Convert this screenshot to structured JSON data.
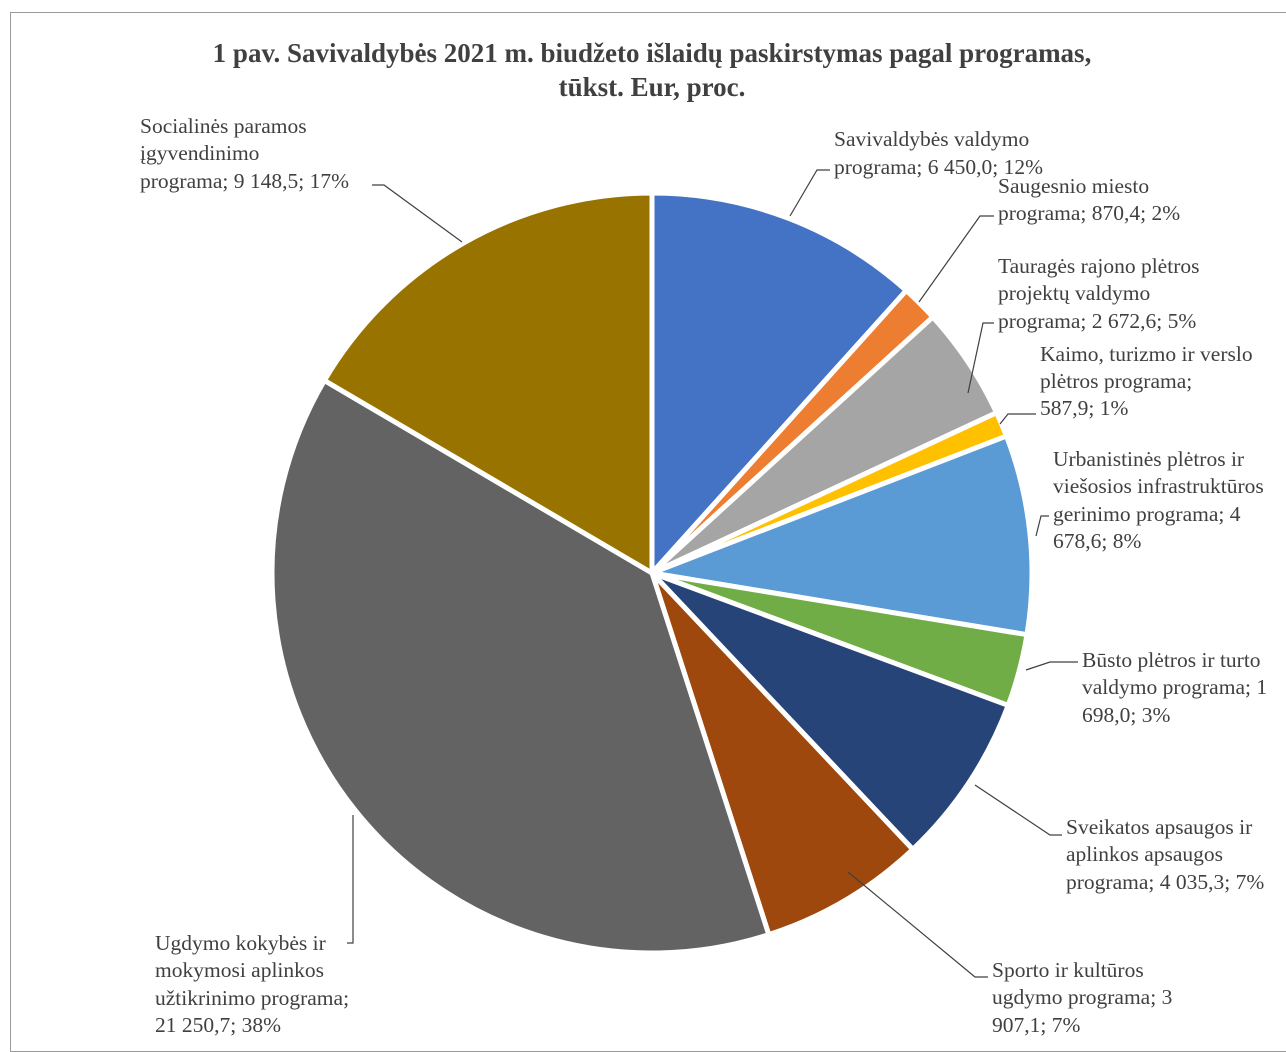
{
  "chart_data": {
    "type": "pie",
    "title": "1 pav. Savivaldybės 2021 m. biudžeto išlaidų paskirstymas pagal programas, tūkst. Eur, proc.",
    "title_lines": [
      "1 pav. Savivaldybės 2021 m. biudžeto išlaidų paskirstymas pagal programas,",
      "tūkst. Eur, proc."
    ],
    "slices": [
      {
        "id": "savivaldybes-valdymo",
        "value": 6450.0,
        "percent": 12,
        "color": "#4472c4",
        "label_lines": [
          "Savivaldybės valdymo",
          "programa; 6 450,0; 12%"
        ]
      },
      {
        "id": "saugesnio-miesto",
        "value": 870.4,
        "percent": 2,
        "color": "#ed7d31",
        "label_lines": [
          "Saugesnio miesto",
          "programa;  870,4; 2%"
        ]
      },
      {
        "id": "taurages-rajono-pletros",
        "value": 2672.6,
        "percent": 5,
        "color": "#a5a5a5",
        "label_lines": [
          "Tauragės rajono plėtros",
          "projektų valdymo",
          "programa; 2 672,6; 5%"
        ]
      },
      {
        "id": "kaimo-turizmo-verslo",
        "value": 587.9,
        "percent": 1,
        "color": "#ffc000",
        "label_lines": [
          "Kaimo, turizmo ir verslo",
          "plėtros programa;",
          "587,9; 1%"
        ]
      },
      {
        "id": "urbanistines-pletros",
        "value": 4678.6,
        "percent": 8,
        "color": "#5b9bd5",
        "label_lines": [
          "Urbanistinės plėtros ir",
          "viešosios infrastruktūros",
          "gerinimo  programa; 4",
          "678,6; 8%"
        ]
      },
      {
        "id": "busto-pletros",
        "value": 1698.0,
        "percent": 3,
        "color": "#70ad47",
        "label_lines": [
          "Būsto plėtros ir turto",
          "valdymo programa; 1",
          "698,0; 3%"
        ]
      },
      {
        "id": "sveikatos-apsaugos",
        "value": 4035.3,
        "percent": 7,
        "color": "#264478",
        "label_lines": [
          "Sveikatos apsaugos ir",
          "aplinkos apsaugos",
          "programa; 4 035,3; 7%"
        ]
      },
      {
        "id": "sporto-ir-kulturos",
        "value": 3907.1,
        "percent": 7,
        "color": "#9e480e",
        "label_lines": [
          "Sporto ir kultūros",
          "ugdymo programa; 3",
          "907,1; 7%"
        ]
      },
      {
        "id": "ugdymo-kokybes",
        "value": 21250.7,
        "percent": 38,
        "color": "#636363",
        "label_lines": [
          "Ugdymo kokybės ir",
          "mokymosi aplinkos",
          "užtikrinimo  programa;",
          "21 250,7; 38%"
        ]
      },
      {
        "id": "socialines-paramos",
        "value": 9148.5,
        "percent": 17,
        "color": "#997300",
        "label_lines": [
          "Socialinės paramos",
          "įgyvendinimo",
          "programa; 9 148,5; 17%"
        ]
      }
    ],
    "legend": "none"
  }
}
